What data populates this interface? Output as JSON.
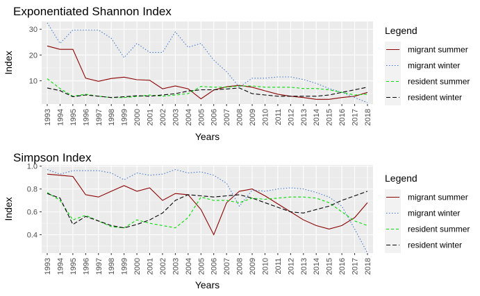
{
  "chart_data": [
    {
      "type": "line",
      "title": "Exponentiated Shannon Index",
      "xlabel": "Years",
      "ylabel": "Index",
      "x": [
        "1993",
        "1994",
        "1995",
        "1996",
        "1997",
        "1998",
        "1999",
        "2000",
        "2001",
        "2002",
        "2003",
        "2004",
        "2005",
        "2006",
        "2007",
        "2008",
        "2009",
        "2010",
        "2011",
        "2012",
        "2013",
        "2014",
        "2015",
        "2016",
        "2017",
        "2018"
      ],
      "ylim": [
        1,
        33
      ],
      "yticks": [
        10,
        20,
        30
      ],
      "grid": true,
      "legend": {
        "title": "Legend",
        "position": "right"
      },
      "series": [
        {
          "name": "migrant summer",
          "color": "#8b0000",
          "dash": "solid",
          "values": [
            23.5,
            22.2,
            22.2,
            11.0,
            9.8,
            10.9,
            11.4,
            10.4,
            10.2,
            6.9,
            8.0,
            6.9,
            3.0,
            6.4,
            7.7,
            8.2,
            7.5,
            6.1,
            4.8,
            4.0,
            3.5,
            2.8,
            2.8,
            3.5,
            4.0,
            5.5
          ]
        },
        {
          "name": "migrant winter",
          "color": "#4477cc",
          "dash": "dotted",
          "values": [
            32.5,
            24.5,
            29.7,
            29.7,
            29.7,
            26.5,
            19.0,
            24.5,
            21.0,
            21.0,
            29.0,
            23.0,
            24.5,
            18.0,
            13.5,
            7.5,
            11.0,
            11.0,
            11.5,
            11.5,
            10.5,
            9.0,
            7.0,
            5.5,
            3.5,
            1.5
          ]
        },
        {
          "name": "resident summer",
          "color": "#00dd00",
          "dash": "dashed",
          "values": [
            10.8,
            7.0,
            4.0,
            4.8,
            4.0,
            3.5,
            3.5,
            3.9,
            4.5,
            4.0,
            4.5,
            5.0,
            7.8,
            7.5,
            7.5,
            8.0,
            8.0,
            7.5,
            7.5,
            7.5,
            7.0,
            7.0,
            6.5,
            5.5,
            4.5,
            4.8
          ]
        },
        {
          "name": "resident winter",
          "color": "#000000",
          "dash": "longdash",
          "values": [
            7.2,
            6.2,
            3.8,
            4.5,
            4.0,
            3.5,
            3.8,
            4.2,
            4.0,
            4.5,
            5.0,
            6.0,
            6.5,
            6.5,
            6.8,
            7.2,
            5.0,
            4.5,
            4.0,
            4.0,
            4.0,
            4.0,
            4.5,
            5.5,
            6.5,
            7.5
          ]
        }
      ]
    },
    {
      "type": "line",
      "title": "Simpson Index",
      "xlabel": "Years",
      "ylabel": "Index",
      "x": [
        "1993",
        "1994",
        "1995",
        "1996",
        "1997",
        "1998",
        "1999",
        "2000",
        "2001",
        "2002",
        "2003",
        "2004",
        "2005",
        "2006",
        "2007",
        "2008",
        "2009",
        "2010",
        "2011",
        "2012",
        "2013",
        "2014",
        "2015",
        "2016",
        "2017",
        "2018"
      ],
      "ylim": [
        0.24,
        1.01
      ],
      "yticks": [
        0.4,
        0.6,
        0.8,
        1.0
      ],
      "grid": true,
      "legend": {
        "title": "Legend",
        "position": "right"
      },
      "series": [
        {
          "name": "migrant summer",
          "color": "#8b0000",
          "dash": "solid",
          "values": [
            0.93,
            0.92,
            0.91,
            0.75,
            0.73,
            0.78,
            0.83,
            0.78,
            0.81,
            0.7,
            0.76,
            0.75,
            0.62,
            0.4,
            0.68,
            0.78,
            0.8,
            0.74,
            0.67,
            0.6,
            0.53,
            0.48,
            0.45,
            0.48,
            0.55,
            0.68
          ]
        },
        {
          "name": "migrant winter",
          "color": "#4477cc",
          "dash": "dotted",
          "values": [
            0.97,
            0.93,
            0.96,
            0.96,
            0.96,
            0.94,
            0.88,
            0.94,
            0.92,
            0.93,
            0.97,
            0.94,
            0.95,
            0.92,
            0.85,
            0.65,
            0.79,
            0.78,
            0.8,
            0.81,
            0.8,
            0.77,
            0.73,
            0.65,
            0.45,
            0.24
          ]
        },
        {
          "name": "resident summer",
          "color": "#00dd00",
          "dash": "dashed",
          "values": [
            0.77,
            0.7,
            0.53,
            0.57,
            0.52,
            0.47,
            0.46,
            0.53,
            0.5,
            0.48,
            0.46,
            0.55,
            0.73,
            0.7,
            0.7,
            0.68,
            0.72,
            0.71,
            0.72,
            0.73,
            0.73,
            0.72,
            0.68,
            0.6,
            0.52,
            0.48
          ]
        },
        {
          "name": "resident winter",
          "color": "#000000",
          "dash": "longdash",
          "values": [
            0.76,
            0.72,
            0.49,
            0.56,
            0.52,
            0.48,
            0.46,
            0.49,
            0.53,
            0.59,
            0.7,
            0.75,
            0.74,
            0.73,
            0.74,
            0.75,
            0.72,
            0.68,
            0.64,
            0.6,
            0.59,
            0.62,
            0.65,
            0.7,
            0.74,
            0.78
          ]
        }
      ]
    }
  ]
}
